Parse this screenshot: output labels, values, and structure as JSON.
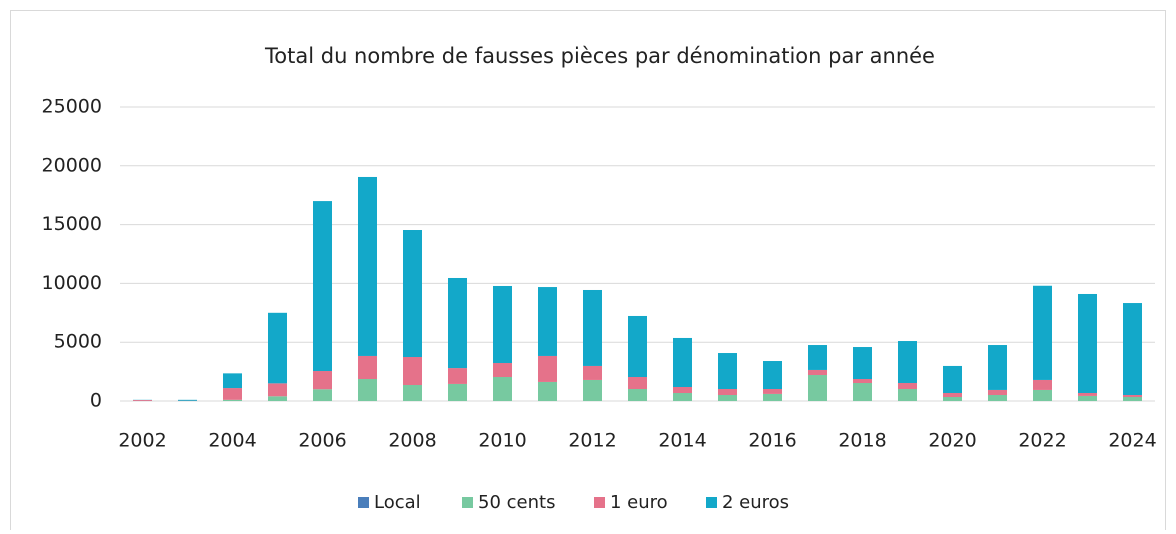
{
  "chart_data": {
    "type": "stacked_bar",
    "title": "Total du nombre de fausses pièces par dénomination par année",
    "categories": [
      "2002",
      null,
      "2004",
      null,
      "2006",
      null,
      "2008",
      null,
      "2010",
      null,
      "2012",
      null,
      "2014",
      null,
      "2016",
      null,
      "2018",
      null,
      "2020",
      null,
      "2022",
      null,
      "2024"
    ],
    "series": [
      {
        "name": "Local",
        "color": "#4a7ebb",
        "values": [
          0,
          0,
          0,
          0,
          0,
          0,
          0,
          0,
          0,
          0,
          0,
          0,
          0,
          0,
          0,
          0,
          0,
          0,
          0,
          0,
          0,
          0,
          0
        ]
      },
      {
        "name": "50 cents",
        "color": "#77c9a0",
        "values": [
          0,
          0,
          100,
          400,
          1000,
          1870,
          1360,
          1450,
          2040,
          1620,
          1790,
          1020,
          680,
          510,
          600,
          2210,
          1530,
          1020,
          340,
          510,
          940,
          430,
          340
        ]
      },
      {
        "name": "1 euro",
        "color": "#e5728a",
        "values": [
          80,
          20,
          1000,
          1100,
          1550,
          1960,
          2380,
          1350,
          1190,
          2210,
          1190,
          1020,
          510,
          510,
          420,
          430,
          340,
          510,
          340,
          430,
          850,
          250,
          170
        ]
      },
      {
        "name": "2 euros",
        "color": "#13a8c9",
        "values": [
          20,
          80,
          1250,
          6000,
          14450,
          15220,
          10800,
          7660,
          6550,
          5860,
          6460,
          5190,
          4170,
          3060,
          2380,
          2120,
          2720,
          3570,
          2300,
          3820,
          8010,
          8420,
          7820
        ]
      }
    ],
    "ylim": [
      0,
      25000
    ],
    "yticks": [
      0,
      5000,
      10000,
      15000,
      20000,
      25000
    ],
    "grid": true,
    "legend": "bottom"
  }
}
